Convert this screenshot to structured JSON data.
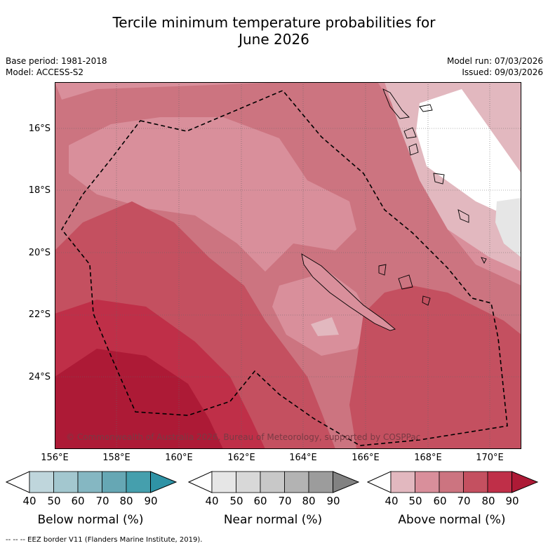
{
  "title_line1": "Tercile minimum temperature probabilities for",
  "title_line2": "June 2026",
  "base_period": "Base period: 1981-2018",
  "model": "Model: ACCESS-S2",
  "model_run": "Model run: 07/03/2026",
  "issued": "Issued: 09/03/2026",
  "lat_labels": [
    "16°S",
    "18°S",
    "20°S",
    "22°S",
    "24°S"
  ],
  "lon_labels": [
    "156°E",
    "158°E",
    "160°E",
    "162°E",
    "164°E",
    "166°E",
    "168°E",
    "170°E"
  ],
  "copyright": "© Commonwealth of Australia 2026, Bureau of Meteorology, supported by COSPPac",
  "colorbars": [
    {
      "label": "Below normal (%)",
      "ticks": [
        "40",
        "50",
        "60",
        "70",
        "80",
        "90"
      ],
      "colors": [
        "#ffffff",
        "#bfd6dc",
        "#a3c7cf",
        "#85b7c2",
        "#66a7b4",
        "#459fad",
        "#2f93a6"
      ]
    },
    {
      "label": "Near normal (%)",
      "ticks": [
        "40",
        "50",
        "60",
        "70",
        "80",
        "90"
      ],
      "colors": [
        "#ffffff",
        "#e6e6e6",
        "#d8d8d8",
        "#c8c8c8",
        "#b3b3b3",
        "#9c9c9c",
        "#828282"
      ]
    },
    {
      "label": "Above normal (%)",
      "ticks": [
        "40",
        "50",
        "60",
        "70",
        "80",
        "90"
      ],
      "colors": [
        "#ffffff",
        "#e2b8bf",
        "#d98f9b",
        "#cc7480",
        "#c45060",
        "#bf2f48",
        "#ad1a36"
      ]
    }
  ],
  "footer": "--  --  -- EEZ border V11 (Flanders Marine Institute, 2019)."
}
